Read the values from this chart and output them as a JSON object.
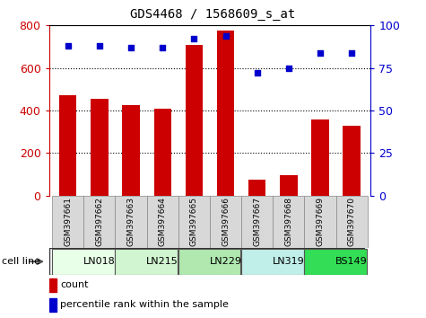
{
  "title": "GDS4468 / 1568609_s_at",
  "samples": [
    "GSM397661",
    "GSM397662",
    "GSM397663",
    "GSM397664",
    "GSM397665",
    "GSM397666",
    "GSM397667",
    "GSM397668",
    "GSM397669",
    "GSM397670"
  ],
  "counts": [
    470,
    455,
    425,
    408,
    710,
    775,
    75,
    95,
    358,
    330
  ],
  "percentile_ranks": [
    88,
    88,
    87,
    87,
    92,
    94,
    72,
    75,
    84,
    84
  ],
  "cell_lines": [
    {
      "name": "LN018",
      "start": 0,
      "end": 2,
      "color": "#e8ffe8"
    },
    {
      "name": "LN215",
      "start": 2,
      "end": 4,
      "color": "#d0f5d0"
    },
    {
      "name": "LN229",
      "start": 4,
      "end": 6,
      "color": "#b0e8b0"
    },
    {
      "name": "LN319",
      "start": 6,
      "end": 8,
      "color": "#c0eee8"
    },
    {
      "name": "BS149",
      "start": 8,
      "end": 10,
      "color": "#33dd55"
    }
  ],
  "bar_color": "#cc0000",
  "dot_color": "#0000cc",
  "ylim_left": [
    0,
    800
  ],
  "ylim_right": [
    0,
    100
  ],
  "yticks_left": [
    0,
    200,
    400,
    600,
    800
  ],
  "yticks_right": [
    0,
    25,
    50,
    75,
    100
  ],
  "legend_count_color": "#cc0000",
  "legend_dot_color": "#0000cc",
  "bg_color": "#ffffff",
  "sample_label_color": "#d8d8d8",
  "sample_border_color": "#888888"
}
